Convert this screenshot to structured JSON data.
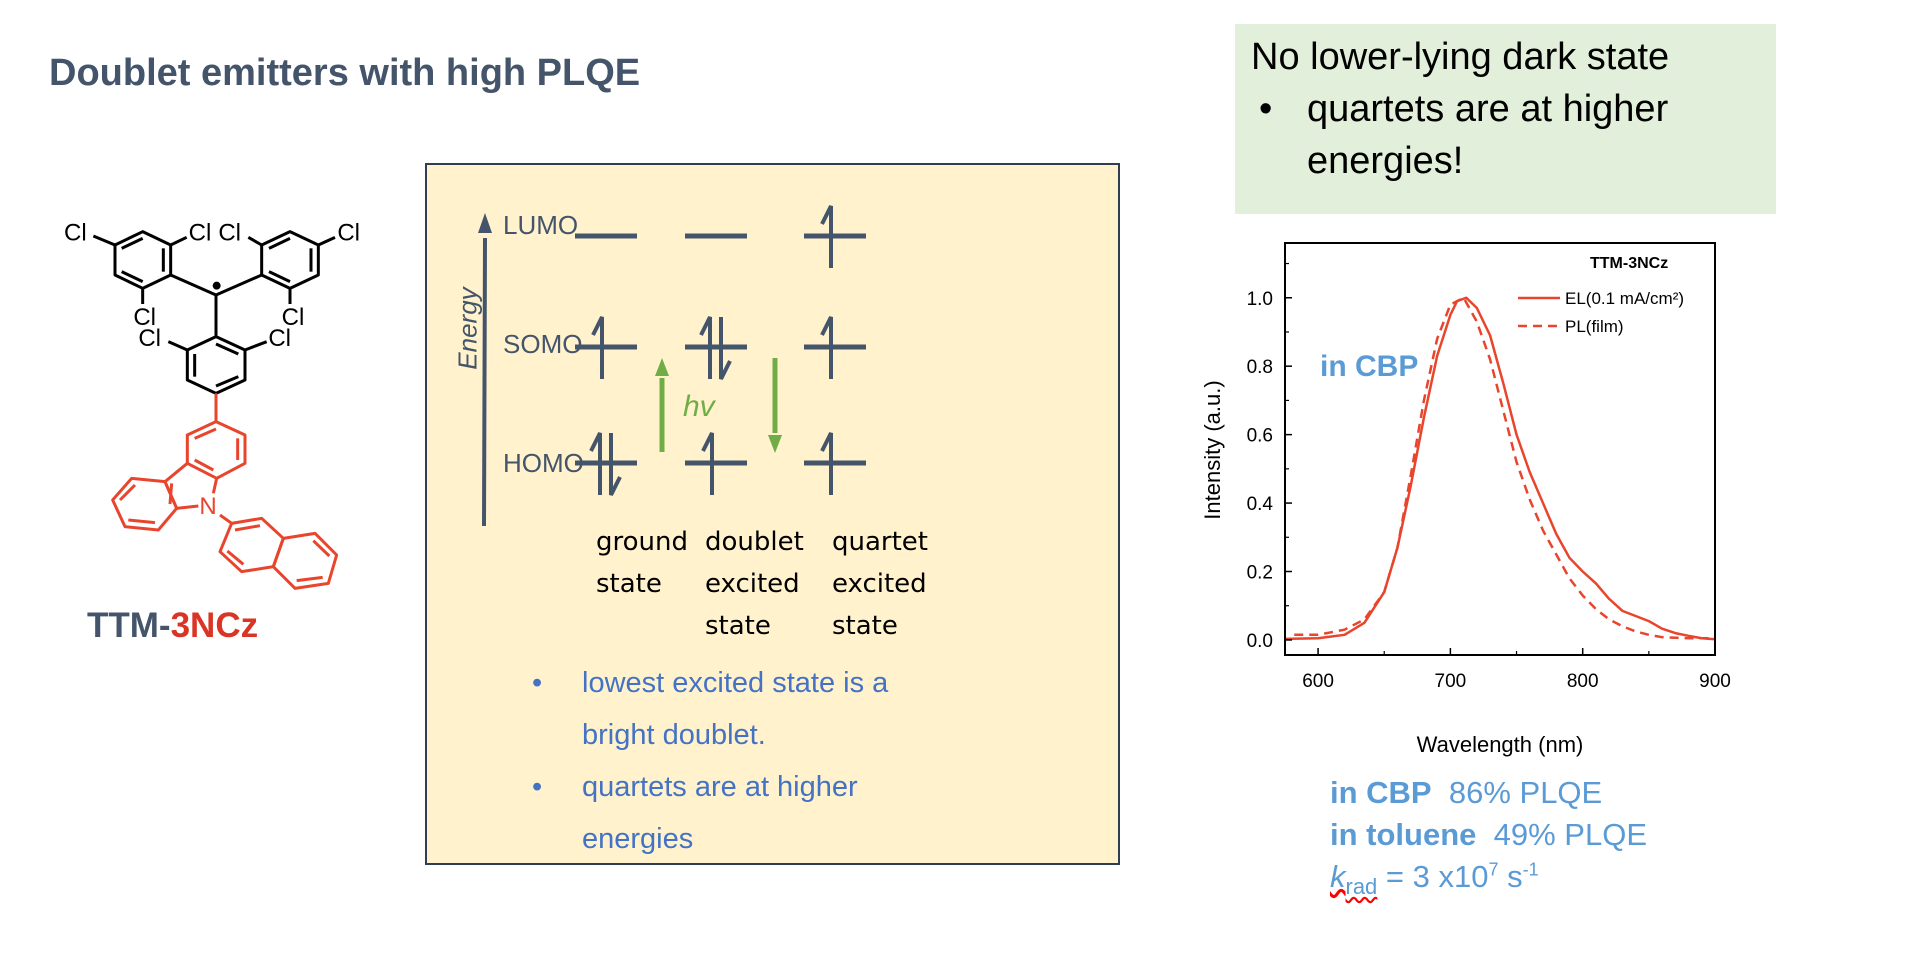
{
  "title": "Doublet emitters with high PLQE",
  "callout": {
    "heading": "No lower-lying dark state",
    "bullet": "•",
    "bullet_lines": [
      "quartets are at higher",
      "energies!"
    ]
  },
  "molecule": {
    "name_part1": "TTM-",
    "name_part2": "3NCz",
    "name_color1": "#44546a",
    "name_color2": "#d93425",
    "atom_labels": [
      "Cl",
      "N"
    ]
  },
  "diagram": {
    "axis_label": "Energy",
    "levels": [
      "LUMO",
      "SOMO",
      "HOMO"
    ],
    "photon_label": "hv",
    "states": [
      {
        "lines": [
          "ground",
          "state"
        ]
      },
      {
        "lines": [
          "doublet",
          "excited",
          "state"
        ]
      },
      {
        "lines": [
          "quartet",
          "excited",
          "state"
        ]
      }
    ],
    "bullets": [
      {
        "lines": [
          "lowest excited state is a",
          "bright doublet."
        ]
      },
      {
        "lines": [
          "quartets are at higher",
          "energies"
        ]
      }
    ],
    "bullet_symbol": "•",
    "arrow_color": "#70ad47"
  },
  "chart_data": {
    "type": "line",
    "title": "TTM-3NCz",
    "annotation": "in CBP",
    "xlabel": "Wavelength (nm)",
    "ylabel": "Intensity (a.u.)",
    "xlim": [
      575,
      900
    ],
    "ylim": [
      -0.044,
      1.16
    ],
    "xticks": [
      "600",
      "700",
      "800",
      "900"
    ],
    "yticks": [
      "0.0",
      "0.2",
      "0.4",
      "0.6",
      "0.8",
      "1.0"
    ],
    "legend_position": "top-right",
    "color": "#e8452c",
    "series": [
      {
        "name": "EL(0.1 mA/cm²)",
        "style": "solid",
        "x": [
          575,
          600,
          620,
          635,
          650,
          660,
          670,
          680,
          690,
          700,
          705,
          712,
          720,
          730,
          740,
          750,
          760,
          770,
          780,
          790,
          800,
          810,
          820,
          830,
          840,
          850,
          860,
          870,
          880,
          890,
          900
        ],
        "y": [
          0.003,
          0.005,
          0.015,
          0.05,
          0.14,
          0.27,
          0.45,
          0.65,
          0.83,
          0.95,
          0.99,
          1.0,
          0.97,
          0.89,
          0.75,
          0.6,
          0.49,
          0.4,
          0.31,
          0.24,
          0.2,
          0.165,
          0.12,
          0.085,
          0.07,
          0.055,
          0.033,
          0.02,
          0.012,
          0.005,
          0.002
        ]
      },
      {
        "name": "PL(film)",
        "style": "dashed",
        "x": [
          582,
          600,
          620,
          635,
          650,
          660,
          670,
          680,
          690,
          700,
          710,
          720,
          730,
          740,
          750,
          760,
          770,
          780,
          790,
          800,
          810,
          820,
          830,
          840,
          850,
          860,
          880,
          900
        ],
        "y": [
          0.015,
          0.015,
          0.03,
          0.06,
          0.14,
          0.27,
          0.48,
          0.7,
          0.88,
          0.98,
          1.0,
          0.93,
          0.82,
          0.67,
          0.52,
          0.41,
          0.32,
          0.25,
          0.18,
          0.13,
          0.09,
          0.06,
          0.04,
          0.025,
          0.015,
          0.008,
          0.005,
          0.005
        ]
      }
    ]
  },
  "stats": {
    "cbp_label": "in CBP",
    "cbp_value": "86% PLQE",
    "toluene_label": "in toluene",
    "toluene_value": "49% PLQE",
    "krad_k": "k",
    "krad_sub": "rad",
    "krad_eq": " = 3 x10",
    "krad_exp": "7",
    "krad_unit": " s",
    "krad_unit_exp": "-1"
  }
}
